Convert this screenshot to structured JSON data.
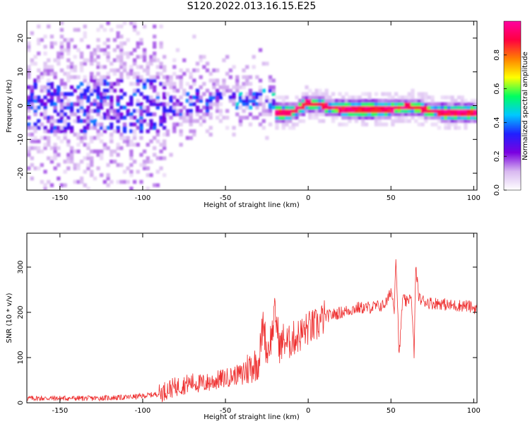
{
  "title": "S120.2022.013.16.15.E25",
  "chart_data": [
    {
      "type": "heatmap",
      "xlabel": "Height of straight line (km)",
      "ylabel": "Frequency (Hz)",
      "xlim": [
        -170,
        102
      ],
      "ylim": [
        -25,
        25
      ],
      "xticks": [
        -150,
        -100,
        -50,
        0,
        50,
        100
      ],
      "yticks": [
        -20,
        -10,
        0,
        10,
        20
      ],
      "colorbar": {
        "label": "Normalized spectral amplitude",
        "range": [
          0,
          1
        ],
        "ticks": [
          "0.0",
          "0.2",
          "0.4",
          "0.6",
          "0.8"
        ],
        "colors": [
          "#ffffff",
          "#d8b8f0",
          "#7a00e0",
          "#2020ff",
          "#00c8ff",
          "#00ff60",
          "#ffff00",
          "#ff8000",
          "#ff0040",
          "#ff00a0"
        ]
      },
      "ridge": [
        {
          "x": -20,
          "y": -2,
          "amp": 1.0
        },
        {
          "x": -10,
          "y": -2,
          "amp": 0.95
        },
        {
          "x": 0,
          "y": 1,
          "amp": 0.95
        },
        {
          "x": 10,
          "y": 0,
          "amp": 0.9
        },
        {
          "x": 20,
          "y": -1,
          "amp": 0.9
        },
        {
          "x": 30,
          "y": -1,
          "amp": 0.95
        },
        {
          "x": 40,
          "y": -1,
          "amp": 0.95
        },
        {
          "x": 50,
          "y": -1,
          "amp": 0.85
        },
        {
          "x": 60,
          "y": 0,
          "amp": 0.9
        },
        {
          "x": 70,
          "y": -1,
          "amp": 0.95
        },
        {
          "x": 80,
          "y": -2,
          "amp": 0.95
        },
        {
          "x": 90,
          "y": -2,
          "amp": 0.85
        },
        {
          "x": 98,
          "y": -2,
          "amp": 0.9
        }
      ]
    },
    {
      "type": "line",
      "xlabel": "Height of straight line (km)",
      "ylabel": "SNR (10 * v/v)",
      "xlim": [
        -170,
        102
      ],
      "ylim": [
        0,
        375
      ],
      "xticks": [
        -150,
        -100,
        -50,
        0,
        50,
        100
      ],
      "yticks": [
        0,
        100,
        200,
        300
      ],
      "color": "#ee3030",
      "series": [
        {
          "x": [
            -170,
            -150,
            -130,
            -110,
            -100,
            -90,
            -85,
            -80,
            -75,
            -70,
            -65,
            -60,
            -55,
            -50,
            -45,
            -40,
            -35,
            -30,
            -27,
            -25,
            -22,
            -20,
            -17,
            -15,
            -12,
            -10,
            -5,
            0,
            5,
            10,
            15,
            20,
            25,
            30,
            35,
            40,
            45,
            48,
            50,
            52,
            53,
            55,
            57,
            60,
            62,
            64,
            65,
            67,
            70,
            75,
            80,
            85,
            90,
            95,
            100
          ],
          "y": [
            10,
            10,
            10,
            12,
            15,
            20,
            30,
            35,
            40,
            45,
            42,
            45,
            50,
            55,
            60,
            65,
            80,
            90,
            180,
            110,
            150,
            200,
            120,
            140,
            130,
            140,
            150,
            165,
            170,
            190,
            195,
            200,
            205,
            210,
            210,
            212,
            215,
            225,
            250,
            210,
            330,
            100,
            230,
            220,
            245,
            110,
            300,
            230,
            225,
            220,
            220,
            215,
            215,
            215,
            210
          ]
        }
      ]
    }
  ]
}
